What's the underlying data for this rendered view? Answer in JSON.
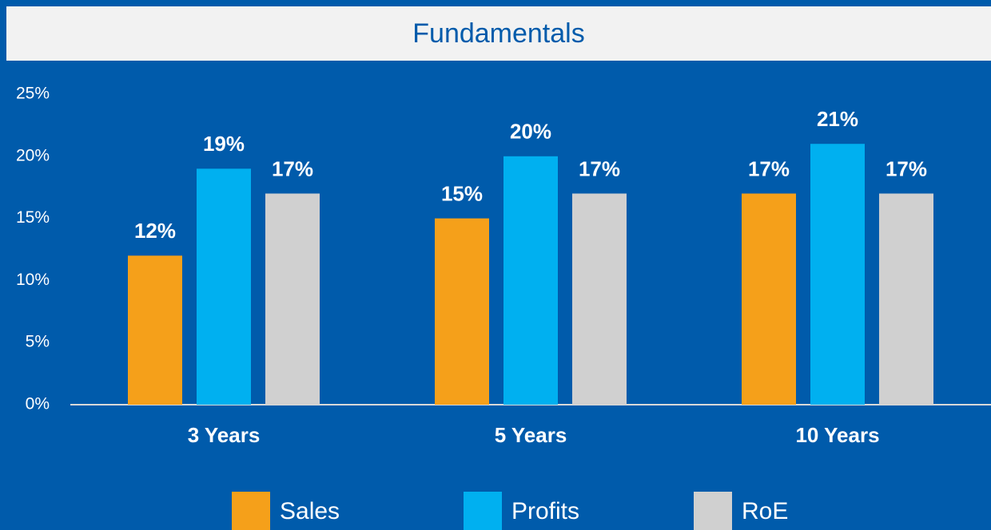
{
  "chart_data": {
    "type": "bar",
    "title": "Fundamentals",
    "categories": [
      "3 Years",
      "5 Years",
      "10 Years"
    ],
    "series": [
      {
        "name": "Sales",
        "color": "#f5a01a",
        "values": [
          12,
          15,
          17
        ],
        "value_labels": [
          "12%",
          "15%",
          "17%"
        ]
      },
      {
        "name": "Profits",
        "color": "#00b0f0",
        "values": [
          19,
          20,
          21
        ],
        "value_labels": [
          "19%",
          "20%",
          "21%"
        ]
      },
      {
        "name": "RoE",
        "color": "#d0d0d0",
        "values": [
          17,
          17,
          17
        ],
        "value_labels": [
          "17%",
          "17%",
          "17%"
        ]
      }
    ],
    "ylim": [
      0,
      25
    ],
    "yticks": [
      {
        "value": 0,
        "label": "0%"
      },
      {
        "value": 5,
        "label": "5%"
      },
      {
        "value": 10,
        "label": "10%"
      },
      {
        "value": 15,
        "label": "15%"
      },
      {
        "value": 20,
        "label": "20%"
      },
      {
        "value": 25,
        "label": "25%"
      }
    ],
    "legend": "bottom"
  }
}
